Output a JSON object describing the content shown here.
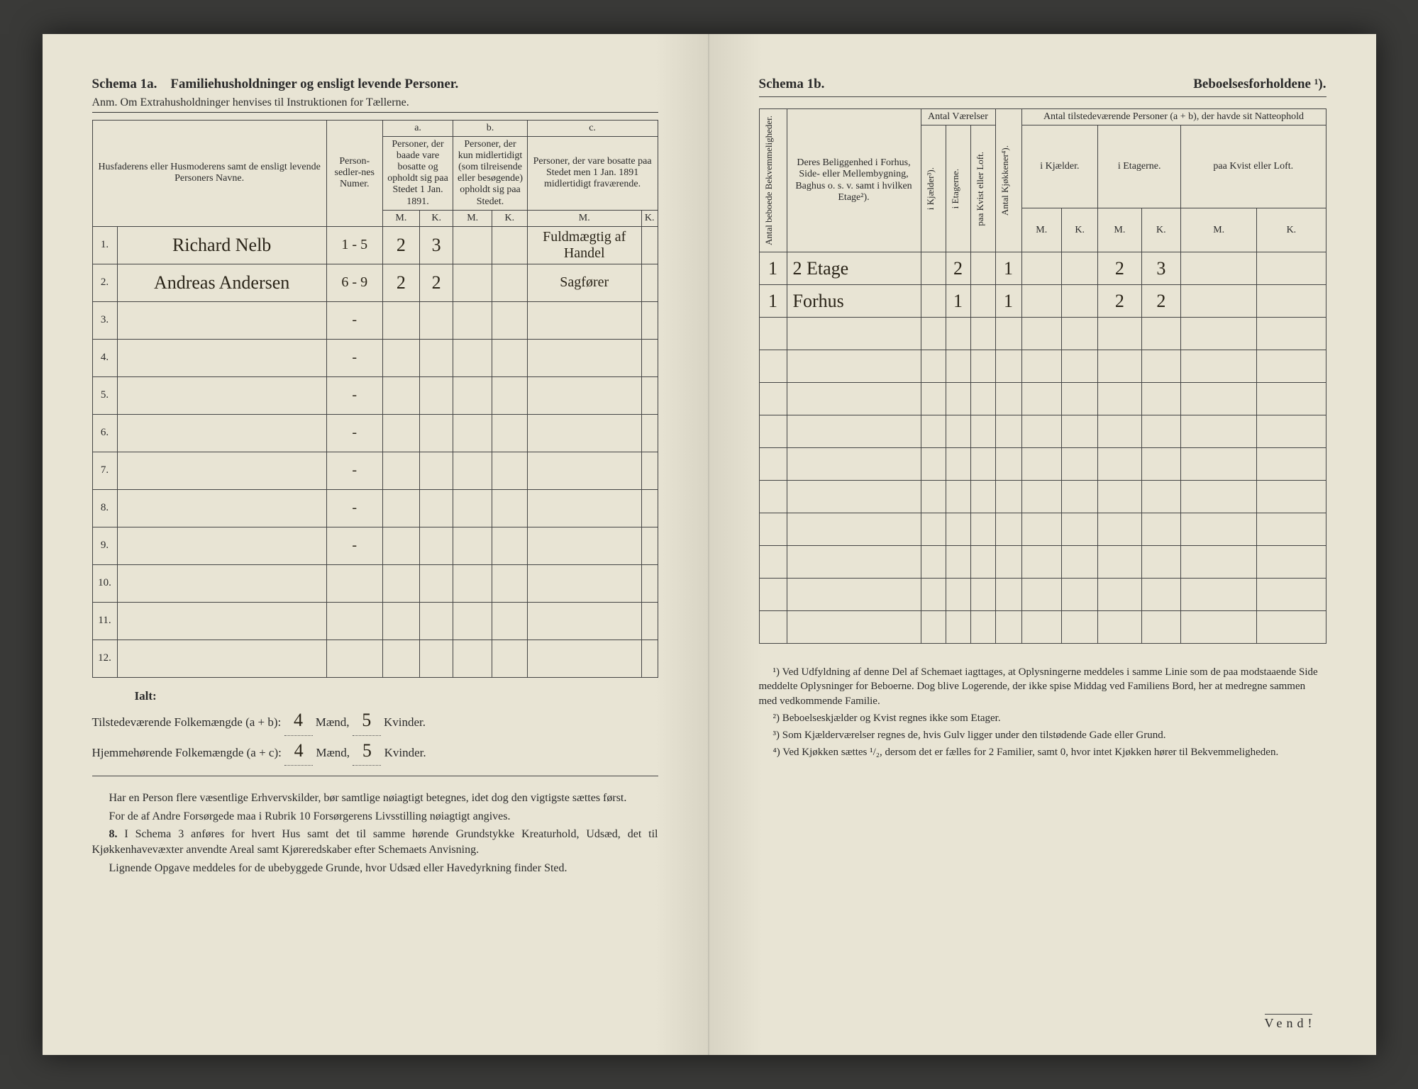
{
  "colors": {
    "paper": "#e8e4d4",
    "ink": "#2a2a2a",
    "handwriting": "#2a2418",
    "background": "#3a3a38",
    "rule": "#444444"
  },
  "left": {
    "title_prefix": "Schema 1a.",
    "title_rest": "Familiehusholdninger og ensligt levende Personer.",
    "anm": "Anm. Om Extrahusholdninger henvises til Instruktionen for Tællerne.",
    "headers": {
      "names": "Husfaderens eller Husmoderens samt de ensligt levende Personers Navne.",
      "person_numer": "Person-sedler-nes Numer.",
      "a_label": "a.",
      "a_text": "Personer, der baade vare bosatte og opholdt sig paa Stedet 1 Jan. 1891.",
      "b_label": "b.",
      "b_text": "Personer, der kun midlertidigt (som tilreisende eller besøgende) opholdt sig paa Stedet.",
      "c_label": "c.",
      "c_text": "Personer, der vare bosatte paa Stedet men 1 Jan. 1891 midlertidigt fraværende.",
      "M": "M.",
      "K": "K."
    },
    "rows": [
      {
        "n": "1.",
        "name": "Richard Nelb",
        "numer": "1 - 5",
        "aM": "2",
        "aK": "3",
        "bM": "",
        "bK": "",
        "cM": "",
        "cK": "",
        "note": "Fuldmægtig af Handel"
      },
      {
        "n": "2.",
        "name": "Andreas Andersen",
        "numer": "6 - 9",
        "aM": "2",
        "aK": "2",
        "bM": "",
        "bK": "",
        "cM": "",
        "cK": "",
        "note": "Sagfører"
      },
      {
        "n": "3.",
        "name": "",
        "numer": "-",
        "aM": "",
        "aK": "",
        "bM": "",
        "bK": "",
        "cM": "",
        "cK": "",
        "note": ""
      },
      {
        "n": "4.",
        "name": "",
        "numer": "-",
        "aM": "",
        "aK": "",
        "bM": "",
        "bK": "",
        "cM": "",
        "cK": "",
        "note": ""
      },
      {
        "n": "5.",
        "name": "",
        "numer": "-",
        "aM": "",
        "aK": "",
        "bM": "",
        "bK": "",
        "cM": "",
        "cK": "",
        "note": ""
      },
      {
        "n": "6.",
        "name": "",
        "numer": "-",
        "aM": "",
        "aK": "",
        "bM": "",
        "bK": "",
        "cM": "",
        "cK": "",
        "note": ""
      },
      {
        "n": "7.",
        "name": "",
        "numer": "-",
        "aM": "",
        "aK": "",
        "bM": "",
        "bK": "",
        "cM": "",
        "cK": "",
        "note": ""
      },
      {
        "n": "8.",
        "name": "",
        "numer": "-",
        "aM": "",
        "aK": "",
        "bM": "",
        "bK": "",
        "cM": "",
        "cK": "",
        "note": ""
      },
      {
        "n": "9.",
        "name": "",
        "numer": "-",
        "aM": "",
        "aK": "",
        "bM": "",
        "bK": "",
        "cM": "",
        "cK": "",
        "note": ""
      },
      {
        "n": "10.",
        "name": "",
        "numer": "",
        "aM": "",
        "aK": "",
        "bM": "",
        "bK": "",
        "cM": "",
        "cK": "",
        "note": ""
      },
      {
        "n": "11.",
        "name": "",
        "numer": "",
        "aM": "",
        "aK": "",
        "bM": "",
        "bK": "",
        "cM": "",
        "cK": "",
        "note": ""
      },
      {
        "n": "12.",
        "name": "",
        "numer": "",
        "aM": "",
        "aK": "",
        "bM": "",
        "bK": "",
        "cM": "",
        "cK": "",
        "note": ""
      }
    ],
    "totals": {
      "ialt": "Ialt:",
      "line1_pre": "Tilstedeværende Folkemængde (a + b): ",
      "line1_m": "4",
      "line1_mid": " Mænd, ",
      "line1_k": "5",
      "line1_suf": " Kvinder.",
      "line2_pre": "Hjemmehørende Folkemængde (a + c): ",
      "line2_m": "4",
      "line2_mid": " Mænd, ",
      "line2_k": "5",
      "line2_suf": " Kvinder."
    },
    "body": {
      "p1": "Har en Person flere væsentlige Erhvervskilder, bør samtlige nøiagtigt betegnes, idet dog den vigtigste sættes først.",
      "p2": "For de af Andre Forsørgede maa i Rubrik 10 Forsørgerens Livsstilling nøiagtigt angives.",
      "p3_num": "8.",
      "p3": "I Schema 3 anføres for hvert Hus samt det til samme hørende Grundstykke Kreaturhold, Udsæd, det til Kjøkkenhavevæxter anvendte Areal samt Kjøreredskaber efter Schemaets Anvisning.",
      "p4": "Lignende Opgave meddeles for de ubebyggede Grunde, hvor Udsæd eller Havedyrkning finder Sted."
    }
  },
  "right": {
    "title_prefix": "Schema 1b.",
    "title_rest": "Beboelsesforholdene ¹).",
    "headers": {
      "antal_beboede": "Antal beboede Bekvemmeligheder.",
      "beliggenhed": "Deres Beliggenhed i Forhus, Side- eller Mellembygning, Baghus o. s. v. samt i hvilken Etage²).",
      "antal_vaer": "Antal Værelser",
      "i_kjaelder": "i Kjælder³).",
      "i_etagerne": "i Etagerne.",
      "paa_kvist": "paa Kvist eller Loft.",
      "antal_kjok": "Antal Kjøkkener⁴).",
      "natteophold": "Antal tilstedeværende Personer (a + b), der havde sit Natteophold",
      "i_kjael": "i Kjælder.",
      "i_etag": "i Etagerne.",
      "paa_kv": "paa Kvist eller Loft.",
      "M": "M.",
      "K": "K."
    },
    "rows": [
      {
        "ab": "1",
        "bel": "2 Etage",
        "kj": "",
        "et": "2",
        "kv": "",
        "kok": "1",
        "kjM": "",
        "kjK": "",
        "etM": "2",
        "etK": "3",
        "kvM": "",
        "kvK": ""
      },
      {
        "ab": "1",
        "bel": "Forhus",
        "kj": "",
        "et": "1",
        "kv": "",
        "kok": "1",
        "kjM": "",
        "kjK": "",
        "etM": "2",
        "etK": "2",
        "kvM": "",
        "kvK": ""
      },
      {
        "ab": "",
        "bel": "",
        "kj": "",
        "et": "",
        "kv": "",
        "kok": "",
        "kjM": "",
        "kjK": "",
        "etM": "",
        "etK": "",
        "kvM": "",
        "kvK": ""
      },
      {
        "ab": "",
        "bel": "",
        "kj": "",
        "et": "",
        "kv": "",
        "kok": "",
        "kjM": "",
        "kjK": "",
        "etM": "",
        "etK": "",
        "kvM": "",
        "kvK": ""
      },
      {
        "ab": "",
        "bel": "",
        "kj": "",
        "et": "",
        "kv": "",
        "kok": "",
        "kjM": "",
        "kjK": "",
        "etM": "",
        "etK": "",
        "kvM": "",
        "kvK": ""
      },
      {
        "ab": "",
        "bel": "",
        "kj": "",
        "et": "",
        "kv": "",
        "kok": "",
        "kjM": "",
        "kjK": "",
        "etM": "",
        "etK": "",
        "kvM": "",
        "kvK": ""
      },
      {
        "ab": "",
        "bel": "",
        "kj": "",
        "et": "",
        "kv": "",
        "kok": "",
        "kjM": "",
        "kjK": "",
        "etM": "",
        "etK": "",
        "kvM": "",
        "kvK": ""
      },
      {
        "ab": "",
        "bel": "",
        "kj": "",
        "et": "",
        "kv": "",
        "kok": "",
        "kjM": "",
        "kjK": "",
        "etM": "",
        "etK": "",
        "kvM": "",
        "kvK": ""
      },
      {
        "ab": "",
        "bel": "",
        "kj": "",
        "et": "",
        "kv": "",
        "kok": "",
        "kjM": "",
        "kjK": "",
        "etM": "",
        "etK": "",
        "kvM": "",
        "kvK": ""
      },
      {
        "ab": "",
        "bel": "",
        "kj": "",
        "et": "",
        "kv": "",
        "kok": "",
        "kjM": "",
        "kjK": "",
        "etM": "",
        "etK": "",
        "kvM": "",
        "kvK": ""
      },
      {
        "ab": "",
        "bel": "",
        "kj": "",
        "et": "",
        "kv": "",
        "kok": "",
        "kjM": "",
        "kjK": "",
        "etM": "",
        "etK": "",
        "kvM": "",
        "kvK": ""
      },
      {
        "ab": "",
        "bel": "",
        "kj": "",
        "et": "",
        "kv": "",
        "kok": "",
        "kjM": "",
        "kjK": "",
        "etM": "",
        "etK": "",
        "kvM": "",
        "kvK": ""
      }
    ],
    "footnotes": {
      "f1": "¹) Ved Udfyldning af denne Del af Schemaet iagttages, at Oplysningerne meddeles i samme Linie som de paa modstaaende Side meddelte Oplysninger for Beboerne. Dog blive Logerende, der ikke spise Middag ved Familiens Bord, her at medregne sammen med vedkommende Familie.",
      "f2": "²) Beboelseskjælder og Kvist regnes ikke som Etager.",
      "f3": "³) Som Kjælderværelser regnes de, hvis Gulv ligger under den tilstødende Gade eller Grund.",
      "f4": "⁴) Ved Kjøkken sættes ¹/₂, dersom det er fælles for 2 Familier, samt 0, hvor intet Kjøkken hører til Bekvemmeligheden."
    },
    "vend": "Vend",
    "vend_excl": "!"
  }
}
